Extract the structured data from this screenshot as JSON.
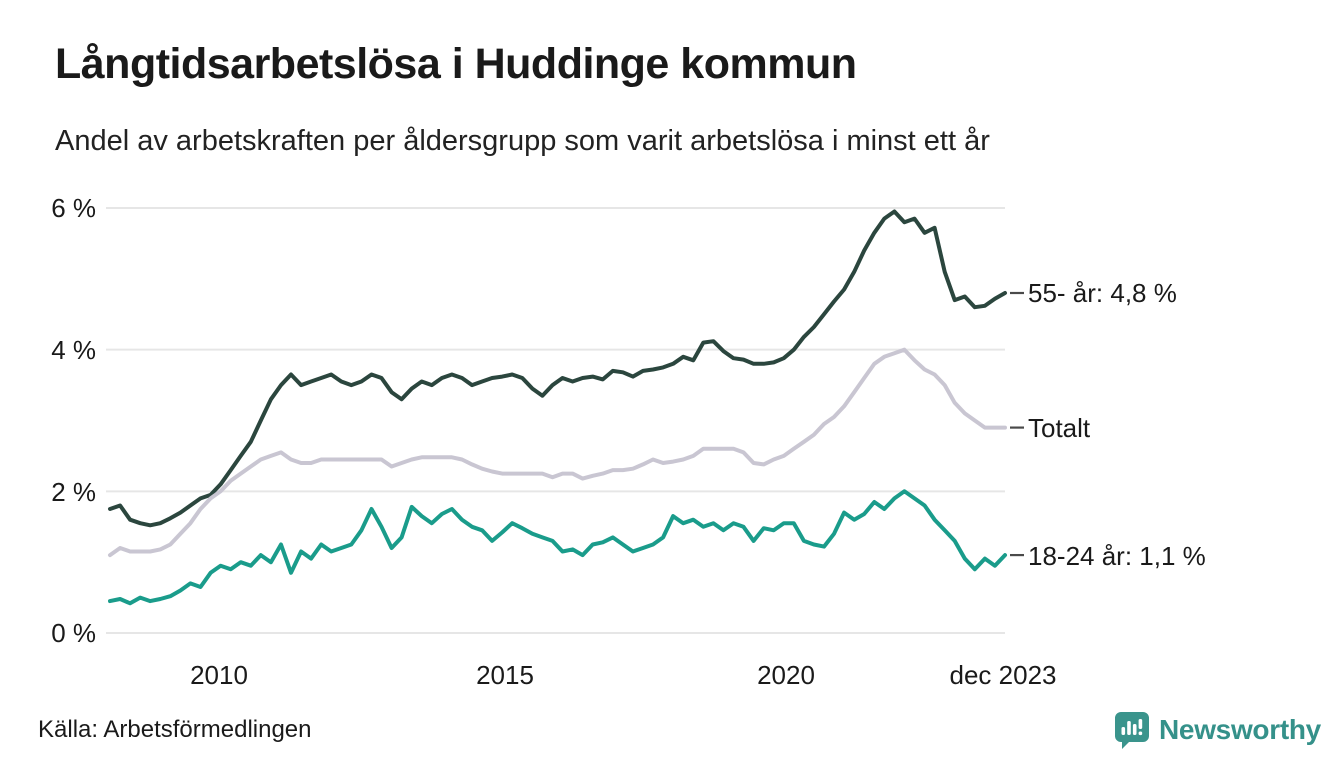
{
  "header": {
    "title": "Långtidsarbetslösa i Huddinge kommun",
    "subtitle": "Andel av arbetskraften per åldersgrupp som varit arbetslösa i minst ett år"
  },
  "source_text": "Källa: Arbetsförmedlingen",
  "branding": {
    "name": "Newsworthy",
    "color": "#35918a",
    "icon": "newsworthy-bar-chart-bubble-icon"
  },
  "colors": {
    "grid": "#e6e6e6",
    "text": "#1a1a1a",
    "leader_dash": "#4a4a4a",
    "background": "#ffffff"
  },
  "chart_data": {
    "type": "line",
    "title": "Långtidsarbetslösa i Huddinge kommun",
    "subtitle": "Andel av arbetskraften per åldersgrupp som varit arbetslösa i minst ett år",
    "grid": "horizontal",
    "legend_position": "right-end-labels",
    "x_axis": {
      "start": "2008",
      "end": "dec 2023",
      "ticks": [
        "2010",
        "2015",
        "2020",
        "dec 2023"
      ]
    },
    "y_axis": {
      "unit": "%",
      "min": 0,
      "max": 6,
      "tick_values": [
        0,
        2,
        4,
        6
      ],
      "ticks": [
        "0 %",
        "2 %",
        "4 %",
        "6 %"
      ]
    },
    "series": [
      {
        "name": "55- år",
        "end_label": "55- år: 4,8 %",
        "last_value": 4.8,
        "color": "#2b463e",
        "values": [
          1.75,
          1.8,
          1.6,
          1.55,
          1.52,
          1.55,
          1.62,
          1.7,
          1.8,
          1.9,
          1.95,
          2.1,
          2.3,
          2.5,
          2.7,
          3.0,
          3.3,
          3.5,
          3.65,
          3.5,
          3.55,
          3.6,
          3.65,
          3.55,
          3.5,
          3.55,
          3.65,
          3.6,
          3.4,
          3.3,
          3.45,
          3.55,
          3.5,
          3.6,
          3.65,
          3.6,
          3.5,
          3.55,
          3.6,
          3.62,
          3.65,
          3.6,
          3.45,
          3.35,
          3.5,
          3.6,
          3.55,
          3.6,
          3.62,
          3.58,
          3.7,
          3.68,
          3.62,
          3.7,
          3.72,
          3.75,
          3.8,
          3.9,
          3.85,
          4.1,
          4.12,
          3.98,
          3.88,
          3.86,
          3.8,
          3.8,
          3.82,
          3.88,
          4.0,
          4.18,
          4.32,
          4.5,
          4.68,
          4.85,
          5.1,
          5.4,
          5.65,
          5.85,
          5.95,
          5.8,
          5.85,
          5.65,
          5.72,
          5.1,
          4.7,
          4.75,
          4.6,
          4.62,
          4.72,
          4.8
        ]
      },
      {
        "name": "Totalt",
        "end_label": "Totalt",
        "last_value": 2.9,
        "color": "#c9c6d2",
        "values": [
          1.1,
          1.2,
          1.15,
          1.15,
          1.15,
          1.18,
          1.25,
          1.4,
          1.55,
          1.75,
          1.9,
          2.0,
          2.15,
          2.25,
          2.35,
          2.45,
          2.5,
          2.55,
          2.45,
          2.4,
          2.4,
          2.45,
          2.45,
          2.45,
          2.45,
          2.45,
          2.45,
          2.45,
          2.35,
          2.4,
          2.45,
          2.48,
          2.48,
          2.48,
          2.48,
          2.45,
          2.38,
          2.32,
          2.28,
          2.25,
          2.25,
          2.25,
          2.25,
          2.25,
          2.2,
          2.25,
          2.25,
          2.18,
          2.22,
          2.25,
          2.3,
          2.3,
          2.32,
          2.38,
          2.45,
          2.4,
          2.42,
          2.45,
          2.5,
          2.6,
          2.6,
          2.6,
          2.6,
          2.55,
          2.4,
          2.38,
          2.45,
          2.5,
          2.6,
          2.7,
          2.8,
          2.95,
          3.05,
          3.2,
          3.4,
          3.6,
          3.8,
          3.9,
          3.95,
          4.0,
          3.85,
          3.72,
          3.65,
          3.5,
          3.25,
          3.1,
          3.0,
          2.9,
          2.9,
          2.9
        ]
      },
      {
        "name": "18-24 år",
        "end_label": "18-24 år: 1,1 %",
        "last_value": 1.1,
        "color": "#1a9c8b",
        "values": [
          0.45,
          0.48,
          0.42,
          0.5,
          0.45,
          0.48,
          0.52,
          0.6,
          0.7,
          0.65,
          0.85,
          0.95,
          0.9,
          1.0,
          0.95,
          1.1,
          1.0,
          1.25,
          0.85,
          1.15,
          1.05,
          1.25,
          1.15,
          1.2,
          1.25,
          1.45,
          1.75,
          1.5,
          1.2,
          1.35,
          1.78,
          1.65,
          1.55,
          1.68,
          1.75,
          1.6,
          1.5,
          1.45,
          1.3,
          1.42,
          1.55,
          1.48,
          1.4,
          1.35,
          1.3,
          1.15,
          1.18,
          1.1,
          1.25,
          1.28,
          1.35,
          1.25,
          1.15,
          1.2,
          1.25,
          1.35,
          1.65,
          1.55,
          1.6,
          1.5,
          1.55,
          1.45,
          1.55,
          1.5,
          1.3,
          1.48,
          1.45,
          1.55,
          1.55,
          1.3,
          1.25,
          1.22,
          1.4,
          1.7,
          1.6,
          1.68,
          1.85,
          1.75,
          1.9,
          2.0,
          1.9,
          1.8,
          1.6,
          1.45,
          1.3,
          1.05,
          0.9,
          1.05,
          0.95,
          1.1
        ]
      }
    ]
  }
}
